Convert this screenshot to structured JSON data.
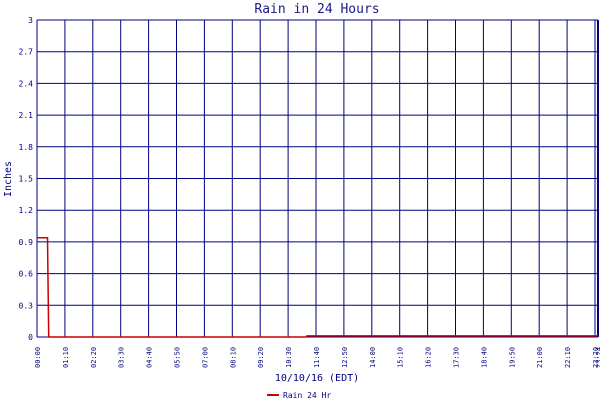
{
  "chart_data": {
    "type": "line",
    "title": "Rain in 24 Hours",
    "ylabel": "Inches",
    "xlabel": "10/10/16 (EDT)",
    "ylim": [
      0,
      3
    ],
    "y_ticks": [
      "0",
      "0.3",
      "0.6",
      "0.9",
      "1.2",
      "1.5",
      "1.8",
      "2.1",
      "2.4",
      "2.7",
      "3"
    ],
    "x_ticks": [
      "00:00",
      "01:10",
      "02:20",
      "03:30",
      "04:40",
      "05:50",
      "07:00",
      "08:10",
      "09:20",
      "10:30",
      "11:40",
      "12:50",
      "14:00",
      "15:10",
      "16:20",
      "17:30",
      "18:40",
      "19:50",
      "21:00",
      "22:10",
      "23:20",
      "23:24"
    ],
    "x_range_hours": [
      0,
      24
    ],
    "grid": true,
    "legend_position": "bottom",
    "series": [
      {
        "name": "Rain 24 Hr",
        "color": "#cc0000",
        "x_hours": [
          0,
          0.45,
          0.5,
          11.5,
          11.55,
          24
        ],
        "values": [
          0.94,
          0.94,
          0.0,
          0.0,
          0.01,
          0.01
        ]
      }
    ]
  },
  "colors": {
    "grid": "#000080",
    "series": "#cc0000",
    "text": "#000080"
  }
}
